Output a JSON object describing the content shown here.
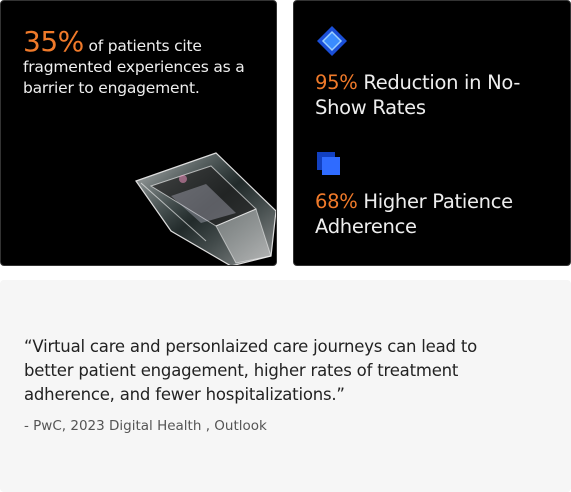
{
  "stat_card": {
    "stat": "35%",
    "text": "of patients cite fragmented experiences as a barrier to engagement."
  },
  "outcomes": [
    {
      "stat": "95%",
      "text": "Reduction in No-Show Rates"
    },
    {
      "stat": "68%",
      "text": "Higher Patience Adherence"
    }
  ],
  "quote": {
    "text": "“Virtual care and personlaized care journeys can lead to better patient engagement, higher rates of treatment adherence, and fewer hospitalizations.”",
    "source": "- PwC, 2023 Digital Health , Outlook"
  }
}
